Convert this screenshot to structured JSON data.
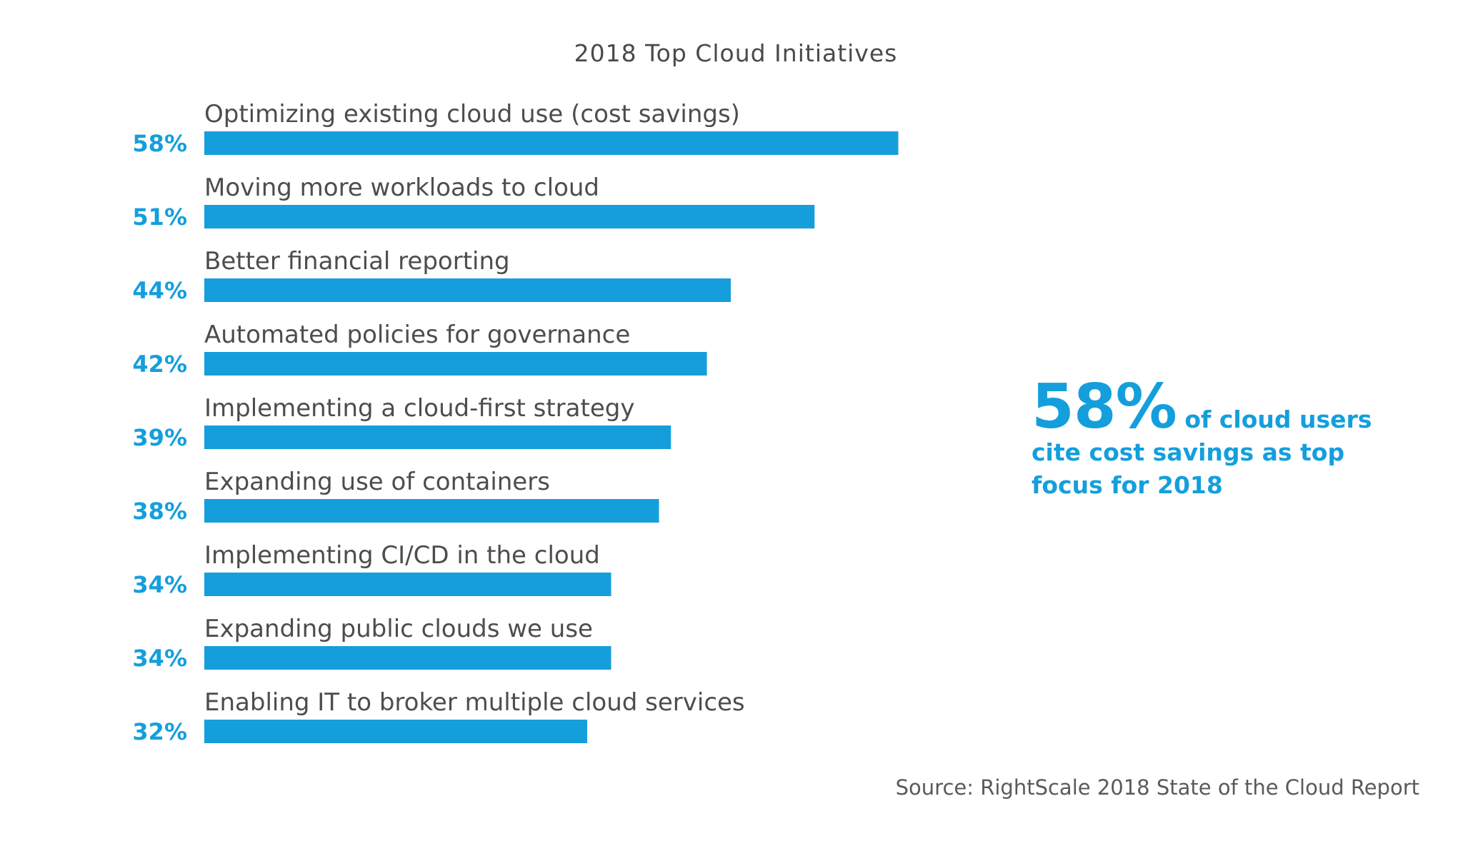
{
  "chart_data": {
    "type": "bar",
    "orientation": "horizontal",
    "title": "2018 Top Cloud Initiatives",
    "categories": [
      "Optimizing existing cloud use (cost savings)",
      "Moving more workloads to cloud",
      "Better financial reporting",
      "Automated policies for governance",
      "Implementing a cloud-first strategy",
      "Expanding use of containers",
      "Implementing CI/CD in the cloud",
      "Expanding public clouds we use",
      "Enabling IT to broker multiple cloud services"
    ],
    "values": [
      58,
      51,
      44,
      42,
      39,
      38,
      34,
      34,
      32
    ],
    "value_labels": [
      "58%",
      "51%",
      "44%",
      "42%",
      "39%",
      "38%",
      "34%",
      "34%",
      "32%"
    ],
    "xlim": [
      0,
      100
    ],
    "grid": false,
    "legend": "none"
  },
  "colors": {
    "bar": "#149fdc",
    "percent_label": "#149fdc",
    "category_text": "#4d4d4d",
    "title_text": "#4a4a4a"
  },
  "callout": {
    "big": "58%",
    "text": " of cloud users cite cost savings as top focus for 2018"
  },
  "source": "Source: RightScale 2018 State of the Cloud Report"
}
